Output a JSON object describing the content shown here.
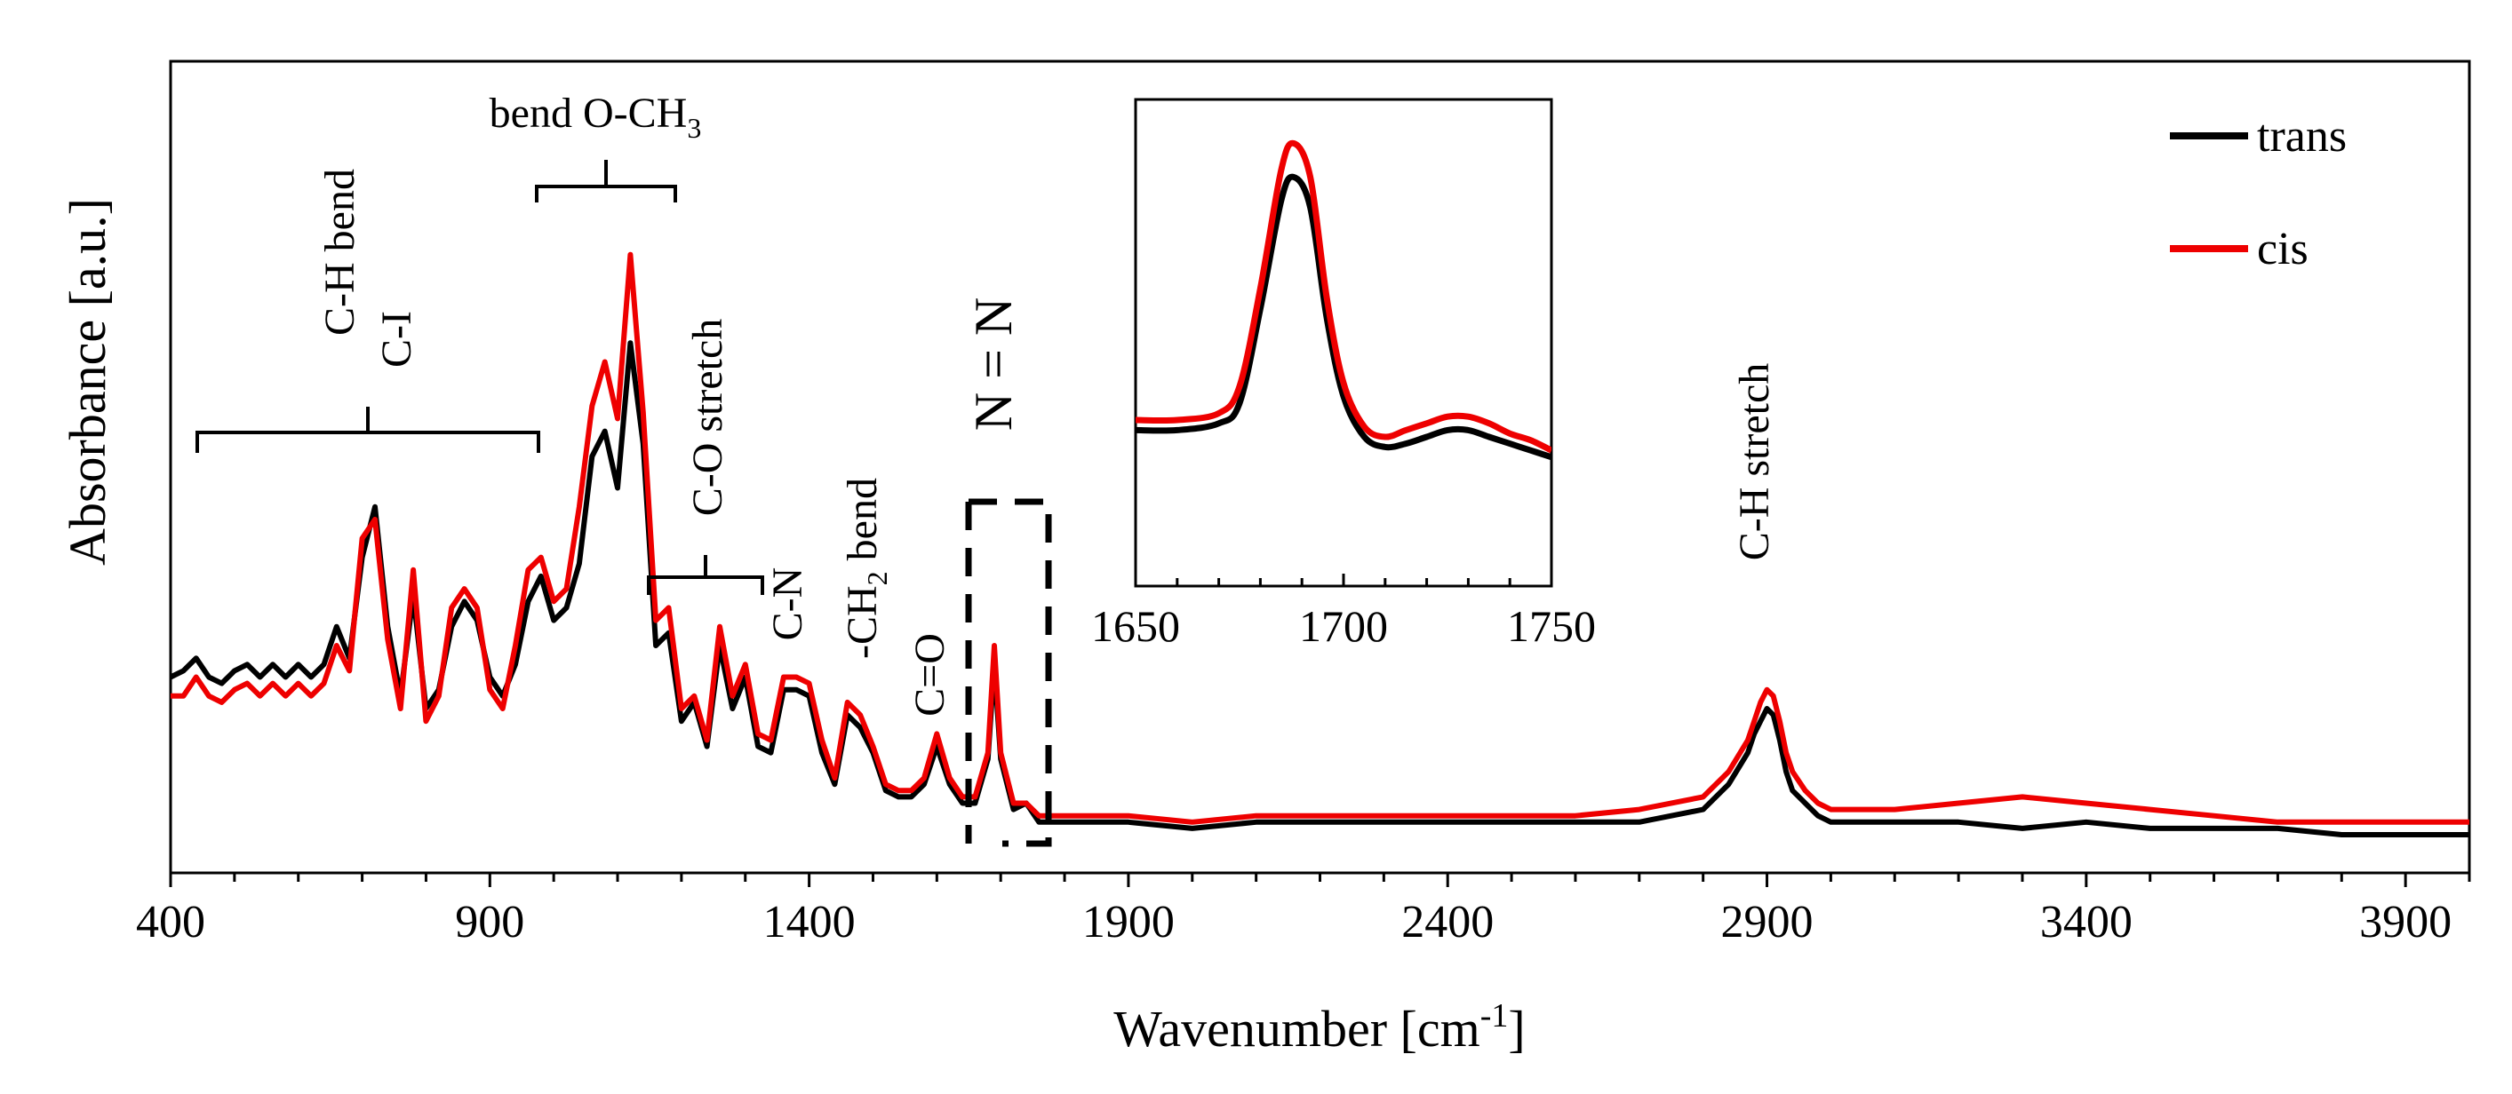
{
  "chart_data": {
    "type": "line",
    "title": "",
    "xlabel": "Wavenumber [cm",
    "xlabel_sup": "-1",
    "xlabel_end": "]",
    "ylabel": "Absorbance  [a.u.]",
    "xlim": [
      400,
      4000
    ],
    "ylim": [
      0,
      1
    ],
    "x_ticks": [
      400,
      900,
      1400,
      1900,
      2400,
      2900,
      3400,
      3900
    ],
    "x_tick_labels": [
      "400",
      "900",
      "1400",
      "1900",
      "2400",
      "2900",
      "3400",
      "3900"
    ],
    "legend": {
      "position": "top-right",
      "entries": [
        "trans",
        "cis"
      ]
    },
    "series": [
      {
        "name": "trans",
        "color": "#000000",
        "x": [
          400,
          420,
          440,
          460,
          480,
          500,
          520,
          540,
          560,
          580,
          600,
          620,
          640,
          660,
          680,
          700,
          720,
          740,
          760,
          780,
          800,
          820,
          840,
          860,
          880,
          900,
          920,
          940,
          960,
          980,
          1000,
          1020,
          1040,
          1060,
          1080,
          1100,
          1120,
          1140,
          1160,
          1180,
          1200,
          1220,
          1240,
          1260,
          1280,
          1300,
          1320,
          1340,
          1360,
          1380,
          1400,
          1420,
          1440,
          1460,
          1480,
          1500,
          1520,
          1540,
          1560,
          1580,
          1600,
          1620,
          1640,
          1660,
          1680,
          1690,
          1700,
          1720,
          1740,
          1760,
          1800,
          1900,
          2000,
          2100,
          2200,
          2300,
          2400,
          2500,
          2600,
          2700,
          2800,
          2840,
          2870,
          2880,
          2890,
          2900,
          2910,
          2920,
          2930,
          2940,
          2960,
          2980,
          3000,
          3040,
          3100,
          3200,
          3300,
          3400,
          3500,
          3600,
          3700,
          3800,
          3900,
          4000
        ],
        "y": [
          0.25,
          0.26,
          0.28,
          0.25,
          0.24,
          0.26,
          0.27,
          0.25,
          0.27,
          0.25,
          0.27,
          0.25,
          0.27,
          0.33,
          0.28,
          0.44,
          0.52,
          0.33,
          0.22,
          0.38,
          0.2,
          0.23,
          0.33,
          0.37,
          0.34,
          0.25,
          0.22,
          0.27,
          0.37,
          0.41,
          0.34,
          0.36,
          0.43,
          0.6,
          0.64,
          0.55,
          0.78,
          0.62,
          0.3,
          0.32,
          0.18,
          0.21,
          0.14,
          0.3,
          0.2,
          0.25,
          0.14,
          0.13,
          0.23,
          0.23,
          0.22,
          0.13,
          0.08,
          0.19,
          0.17,
          0.13,
          0.07,
          0.06,
          0.06,
          0.08,
          0.14,
          0.08,
          0.05,
          0.05,
          0.12,
          0.27,
          0.12,
          0.04,
          0.05,
          0.02,
          0.02,
          0.02,
          0.01,
          0.02,
          0.02,
          0.02,
          0.02,
          0.02,
          0.02,
          0.02,
          0.04,
          0.08,
          0.13,
          0.16,
          0.18,
          0.2,
          0.19,
          0.15,
          0.1,
          0.07,
          0.05,
          0.03,
          0.02,
          0.02,
          0.02,
          0.02,
          0.01,
          0.02,
          0.01,
          0.01,
          0.01,
          0.0,
          0.0,
          0.0
        ]
      },
      {
        "name": "cis",
        "color": "#ee0000",
        "x": [
          400,
          420,
          440,
          460,
          480,
          500,
          520,
          540,
          560,
          580,
          600,
          620,
          640,
          660,
          680,
          700,
          720,
          740,
          760,
          780,
          800,
          820,
          840,
          860,
          880,
          900,
          920,
          940,
          960,
          980,
          1000,
          1020,
          1040,
          1060,
          1080,
          1100,
          1120,
          1140,
          1160,
          1180,
          1200,
          1220,
          1240,
          1260,
          1280,
          1300,
          1320,
          1340,
          1360,
          1380,
          1400,
          1420,
          1440,
          1460,
          1480,
          1500,
          1520,
          1540,
          1560,
          1580,
          1600,
          1620,
          1640,
          1660,
          1680,
          1690,
          1700,
          1720,
          1740,
          1760,
          1800,
          1900,
          2000,
          2100,
          2200,
          2300,
          2400,
          2500,
          2600,
          2700,
          2800,
          2840,
          2870,
          2880,
          2890,
          2900,
          2910,
          2920,
          2930,
          2940,
          2960,
          2980,
          3000,
          3040,
          3100,
          3200,
          3300,
          3400,
          3500,
          3600,
          3700,
          3800,
          3900,
          4000
        ],
        "y": [
          0.22,
          0.22,
          0.25,
          0.22,
          0.21,
          0.23,
          0.24,
          0.22,
          0.24,
          0.22,
          0.24,
          0.22,
          0.24,
          0.3,
          0.26,
          0.47,
          0.5,
          0.31,
          0.2,
          0.42,
          0.18,
          0.22,
          0.36,
          0.39,
          0.36,
          0.23,
          0.2,
          0.3,
          0.42,
          0.44,
          0.37,
          0.39,
          0.52,
          0.68,
          0.75,
          0.66,
          0.92,
          0.67,
          0.34,
          0.36,
          0.2,
          0.22,
          0.15,
          0.33,
          0.22,
          0.27,
          0.16,
          0.15,
          0.25,
          0.25,
          0.24,
          0.15,
          0.09,
          0.21,
          0.19,
          0.14,
          0.08,
          0.07,
          0.07,
          0.09,
          0.16,
          0.09,
          0.06,
          0.06,
          0.13,
          0.3,
          0.13,
          0.05,
          0.05,
          0.03,
          0.03,
          0.03,
          0.02,
          0.03,
          0.03,
          0.03,
          0.03,
          0.03,
          0.03,
          0.04,
          0.06,
          0.1,
          0.15,
          0.18,
          0.21,
          0.23,
          0.22,
          0.18,
          0.13,
          0.1,
          0.07,
          0.05,
          0.04,
          0.04,
          0.04,
          0.05,
          0.06,
          0.05,
          0.04,
          0.03,
          0.02,
          0.02,
          0.02,
          0.02
        ]
      }
    ],
    "annotations": [
      {
        "text": "C-H bend",
        "x_range": [
          450,
          980
        ]
      },
      {
        "text": "C-I",
        "x_range": [
          450,
          980
        ]
      },
      {
        "text": "bend O-CH",
        "sub": "3",
        "x_range": [
          980,
          1200
        ]
      },
      {
        "text": "C-O stretch",
        "x_range": [
          1150,
          1330
        ]
      },
      {
        "text": "C-N",
        "x": 1380
      },
      {
        "text": "-CH",
        "sub": "2",
        "text_end": " bend",
        "x": 1460
      },
      {
        "text": "C=O",
        "x": 1570
      },
      {
        "text": "N = N",
        "x_range": [
          1640,
          1770
        ]
      },
      {
        "text": "C-H stretch",
        "x": 2900
      }
    ],
    "inset": {
      "xlim": [
        1650,
        1750
      ],
      "x_ticks": [
        1650,
        1700,
        1750
      ],
      "x_tick_labels": [
        "1650",
        "1700",
        "1750"
      ],
      "series": [
        {
          "name": "trans",
          "color": "#000000",
          "x": [
            1650,
            1660,
            1670,
            1675,
            1680,
            1685,
            1688,
            1692,
            1696,
            1700,
            1705,
            1710,
            1715,
            1720,
            1725,
            1730,
            1735,
            1740,
            1745,
            1750
          ],
          "y": [
            0.12,
            0.12,
            0.14,
            0.2,
            0.48,
            0.8,
            0.87,
            0.78,
            0.45,
            0.22,
            0.1,
            0.07,
            0.08,
            0.1,
            0.12,
            0.12,
            0.1,
            0.08,
            0.06,
            0.04
          ]
        },
        {
          "name": "cis",
          "color": "#ee0000",
          "x": [
            1650,
            1660,
            1670,
            1675,
            1680,
            1685,
            1688,
            1692,
            1696,
            1700,
            1705,
            1710,
            1715,
            1720,
            1725,
            1730,
            1735,
            1740,
            1745,
            1750
          ],
          "y": [
            0.15,
            0.15,
            0.17,
            0.25,
            0.54,
            0.89,
            0.97,
            0.87,
            0.51,
            0.26,
            0.13,
            0.1,
            0.12,
            0.14,
            0.16,
            0.16,
            0.14,
            0.11,
            0.09,
            0.06
          ]
        }
      ]
    }
  }
}
